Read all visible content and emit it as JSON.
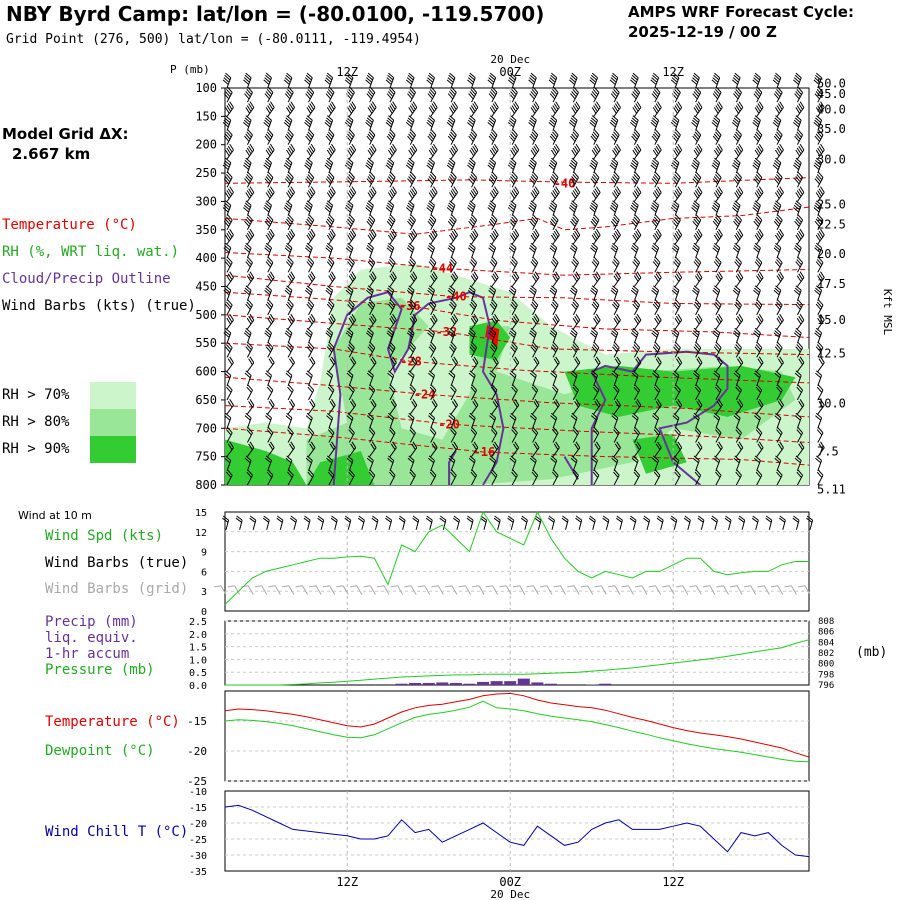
{
  "header": {
    "title": "NBY Byrd Camp:  lat/lon = (-80.0100, -119.5700)",
    "grid_point": "Grid Point (276, 500) lat/lon = (-80.0111, -119.4954)",
    "cycle_line1": "AMPS WRF Forecast Cycle:",
    "cycle_line2": "2025-12-19 / 00  Z"
  },
  "side": {
    "model_grid_line1": "Model Grid ΔX:",
    "model_grid_line2": "2.667 km",
    "legend_temperature": "Temperature (°C)",
    "legend_rh": "RH (%, WRT liq. wat.)",
    "legend_cloud": "Cloud/Precip Outline",
    "legend_wind": "Wind Barbs (kts) (true)",
    "rh_levels": [
      {
        "label": "RH > 70%",
        "color": "#ccf5cc"
      },
      {
        "label": "RH > 80%",
        "color": "#99e699"
      },
      {
        "label": "RH > 90%",
        "color": "#33cc33"
      }
    ]
  },
  "colors": {
    "temperature": "#e00000",
    "dewpoint": "#22cc22",
    "rh": "#22cc22",
    "cloud": "#663399",
    "wind": "#000000",
    "wind_grid": "#aaaaaa",
    "precip": "#663399",
    "wind_chill": "#0000aa"
  },
  "time_axis": {
    "date_label": "20 Dec",
    "ticks": [
      "12Z",
      "00Z",
      "12Z"
    ]
  },
  "chart_data": [
    {
      "type": "heatmap",
      "title": "",
      "ylabel": "P (mb)",
      "ylabel_right": "Kft MSL",
      "pressure_ticks": [
        "100",
        "150",
        "200",
        "250",
        "300",
        "350",
        "400",
        "450",
        "500",
        "550",
        "600",
        "650",
        "700",
        "750",
        "800"
      ],
      "height_ticks": [
        {
          "label": "50.0",
          "p": 92
        },
        {
          "label": "45.0",
          "p": 111
        },
        {
          "label": "40.0",
          "p": 138
        },
        {
          "label": "35.0",
          "p": 172
        },
        {
          "label": "30.0",
          "p": 226
        },
        {
          "label": "25.0",
          "p": 305
        },
        {
          "label": "22.5",
          "p": 341
        },
        {
          "label": "20.0",
          "p": 393
        },
        {
          "label": "17.5",
          "p": 446
        },
        {
          "label": "15.0",
          "p": 509
        },
        {
          "label": "12.5",
          "p": 568
        },
        {
          "label": "10.0",
          "p": 656
        },
        {
          "label": "7.5",
          "p": 741
        },
        {
          "label": "5.11",
          "p": 808
        }
      ],
      "ylim": [
        100,
        800
      ],
      "temperature_contour_labels": [
        {
          "label": "-40",
          "t": 25.0,
          "p": 268
        },
        {
          "label": "-44",
          "t": 16.0,
          "p": 418
        },
        {
          "label": "-40",
          "t": 17.0,
          "p": 468
        },
        {
          "label": "-36",
          "t": 13.6,
          "p": 484
        },
        {
          "label": "-32",
          "t": 16.3,
          "p": 530
        },
        {
          "label": "-28",
          "t": 13.7,
          "p": 582
        },
        {
          "label": "-24",
          "t": 14.7,
          "p": 640
        },
        {
          "label": "-20",
          "t": 16.5,
          "p": 693
        },
        {
          "label": "-16",
          "t": 19.1,
          "p": 742
        }
      ]
    },
    {
      "type": "line",
      "title": "Wind at 10 m",
      "series": [
        {
          "name": "Wind Spd (kts)",
          "values": [
            1,
            3,
            5,
            6,
            6.5,
            7,
            7.5,
            8,
            8,
            8.2,
            8.3,
            8,
            4,
            10,
            9,
            12,
            13,
            11,
            9,
            15,
            12,
            11,
            10,
            15,
            11,
            8,
            6,
            5,
            6,
            5.5,
            5,
            6,
            6,
            7,
            8,
            8,
            6,
            5.5,
            5.8,
            6,
            6,
            7,
            7.5,
            7.5
          ]
        }
      ],
      "yticks": [
        "0",
        "3",
        "6",
        "9",
        "12",
        "15"
      ],
      "ylim": [
        0,
        15
      ],
      "legend": [
        "Wind Spd (kts)",
        "Wind Barbs (true)",
        "Wind Barbs (grid)"
      ]
    },
    {
      "type": "line",
      "series": [
        {
          "name": "Precip (mm)",
          "values": [
            0,
            0,
            0,
            0,
            0,
            0,
            0,
            0,
            0,
            0,
            0,
            0,
            0,
            0.05,
            0.08,
            0.08,
            0.1,
            0.08,
            0.05,
            0.12,
            0.15,
            0.15,
            0.25,
            0.1,
            0.05,
            0,
            0,
            0.02,
            0.05,
            0,
            0,
            0,
            0,
            0,
            0,
            0,
            0,
            0,
            0,
            0,
            0,
            0,
            0,
            0
          ]
        },
        {
          "name": "Pressure (mb)",
          "values": [
            796.0,
            796.0,
            796.0,
            796.0,
            796.0,
            796.1,
            796.2,
            796.4,
            796.5,
            796.7,
            796.9,
            797.1,
            797.3,
            797.5,
            797.6,
            797.7,
            797.8,
            797.9,
            797.9,
            798.0,
            798.0,
            798.0,
            798.0,
            798.1,
            798.2,
            798.3,
            798.4,
            798.6,
            798.8,
            799.0,
            799.2,
            799.5,
            799.8,
            800.1,
            800.4,
            800.7,
            801.0,
            801.4,
            801.8,
            802.2,
            802.6,
            803.0,
            803.8,
            804.5
          ]
        }
      ],
      "yticks_left": [
        "0.0",
        "0.5",
        "1.0",
        "1.5",
        "2.0",
        "2.5"
      ],
      "yticks_right": [
        "808",
        "806",
        "804",
        "802",
        "800",
        "798",
        "796"
      ],
      "ylim_left": [
        0,
        2.5
      ],
      "ylim_right": [
        796,
        808
      ],
      "right_unit": "(mb)",
      "legend": [
        "Precip (mm)",
        "liq. equiv.",
        "1-hr accum",
        "Pressure (mb)"
      ]
    },
    {
      "type": "line",
      "series": [
        {
          "name": "Temperature (°C)",
          "values": [
            -13.3,
            -13.0,
            -13.1,
            -13.3,
            -13.6,
            -13.9,
            -14.3,
            -14.8,
            -15.3,
            -15.8,
            -16.0,
            -15.5,
            -14.5,
            -13.5,
            -12.8,
            -12.4,
            -12.2,
            -11.8,
            -11.4,
            -10.8,
            -10.5,
            -10.4,
            -10.8,
            -11.5,
            -12.0,
            -12.3,
            -12.6,
            -12.8,
            -13.2,
            -13.8,
            -14.4,
            -14.9,
            -15.5,
            -16.1,
            -16.6,
            -17.0,
            -17.3,
            -17.6,
            -18.0,
            -18.5,
            -19.0,
            -19.5,
            -20.3,
            -21.0
          ]
        },
        {
          "name": "Dewpoint (°C)",
          "values": [
            -15.0,
            -14.8,
            -14.9,
            -15.1,
            -15.4,
            -15.8,
            -16.3,
            -16.8,
            -17.3,
            -17.7,
            -17.8,
            -17.3,
            -16.3,
            -15.3,
            -14.4,
            -13.9,
            -13.6,
            -13.2,
            -12.7,
            -11.7,
            -12.8,
            -13.0,
            -13.3,
            -13.8,
            -14.2,
            -14.5,
            -14.8,
            -15.1,
            -15.6,
            -16.1,
            -16.7,
            -17.2,
            -17.8,
            -18.3,
            -18.8,
            -19.2,
            -19.6,
            -19.9,
            -20.2,
            -20.6,
            -21.0,
            -21.4,
            -21.7,
            -21.8
          ]
        }
      ],
      "yticks": [
        "-15",
        "-20",
        "-25"
      ],
      "ylim": [
        -25,
        -10
      ]
    },
    {
      "type": "line",
      "series": [
        {
          "name": "Wind Chill T (°C)",
          "values": [
            -15,
            -14.5,
            -16,
            -18,
            -20,
            -22,
            -22.5,
            -23,
            -23.5,
            -24,
            -25,
            -25,
            -24,
            -19,
            -23,
            -22,
            -26,
            -24,
            -22,
            -20,
            -23,
            -26,
            -27,
            -21,
            -24,
            -27,
            -26,
            -22,
            -20,
            -19,
            -22,
            -22,
            -22,
            -21,
            -20,
            -21,
            -25,
            -29,
            -23,
            -24,
            -23,
            -27,
            -30,
            -30.5
          ]
        }
      ],
      "yticks": [
        "-10",
        "-15",
        "-20",
        "-25",
        "-30",
        "-35"
      ],
      "ylim": [
        -35,
        -10
      ]
    }
  ]
}
